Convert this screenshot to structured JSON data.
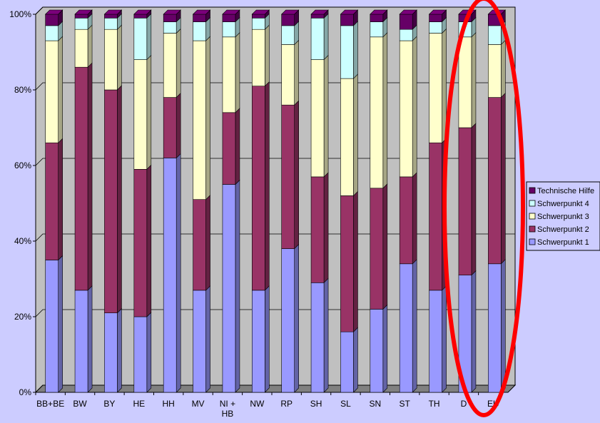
{
  "colors": {
    "background": "#ccccff",
    "plot_floor": "#808080",
    "plot_back": "#c0c0c0",
    "highlight": "#ff0000"
  },
  "chart_data": {
    "type": "bar",
    "stacked": true,
    "percent": true,
    "categories": [
      "BB+BE",
      "BW",
      "BY",
      "HE",
      "HH",
      "MV",
      "NI + HB",
      "NW",
      "RP",
      "SH",
      "SL",
      "SN",
      "ST",
      "TH",
      "D",
      "EU"
    ],
    "series": [
      {
        "name": "Schwerpunkt 1",
        "color": "#9999ff",
        "values": [
          35,
          27,
          21,
          20,
          62,
          27,
          55,
          27,
          38,
          29,
          16,
          22,
          34,
          27,
          31,
          34
        ]
      },
      {
        "name": "Schwerpunkt 2",
        "color": "#993366",
        "values": [
          31,
          59,
          59,
          39,
          16,
          24,
          19,
          54,
          38,
          28,
          36,
          32,
          23,
          39,
          39,
          44
        ]
      },
      {
        "name": "Schwerpunkt 3",
        "color": "#ffffcc",
        "values": [
          27,
          10,
          16,
          29,
          17,
          42,
          20,
          15,
          16,
          31,
          31,
          40,
          36,
          29,
          24,
          14
        ]
      },
      {
        "name": "Schwerpunkt 4",
        "color": "#ccffff",
        "values": [
          4,
          3,
          3,
          11,
          3,
          5,
          4,
          3,
          5,
          11,
          14,
          4,
          3,
          3,
          4,
          5
        ]
      },
      {
        "name": "Technische Hilfe",
        "color": "#660066",
        "values": [
          3,
          1,
          1,
          1,
          2,
          2,
          2,
          1,
          3,
          1,
          3,
          2,
          4,
          2,
          2,
          3
        ]
      }
    ],
    "legend_order": [
      "Technische Hilfe",
      "Schwerpunkt 4",
      "Schwerpunkt 3",
      "Schwerpunkt 2",
      "Schwerpunkt 1"
    ],
    "y_ticks": [
      "0%",
      "20%",
      "40%",
      "60%",
      "80%",
      "100%"
    ],
    "ylim": [
      0,
      100
    ],
    "grid": true,
    "legend_position": "right",
    "annotation": "red ellipse highlighting D and EU"
  }
}
